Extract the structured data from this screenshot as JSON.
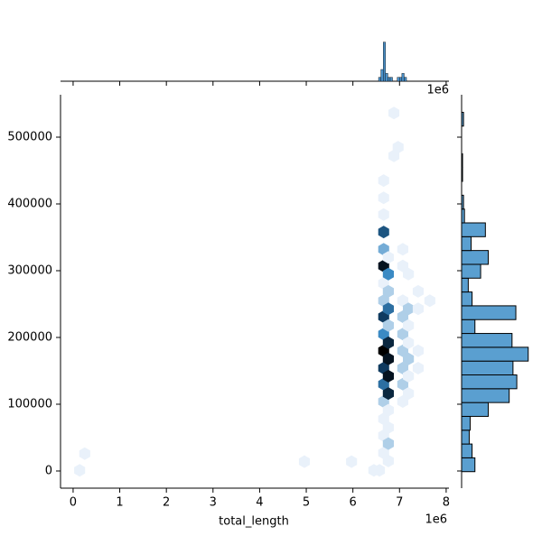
{
  "chart_data": {
    "type": "hexbin-joint",
    "xlabel": "total_length",
    "x_offset_label": "1e6",
    "top_offset_label": "1e6",
    "xlim": [
      -0.27,
      8.06
    ],
    "ylim": [
      -25700,
      563500
    ],
    "xticks": [
      0,
      1,
      2,
      3,
      4,
      5,
      6,
      7,
      8
    ],
    "yticks": [
      0,
      100000,
      200000,
      300000,
      400000,
      500000
    ],
    "cmap": [
      "#e9f1fa",
      "#3a8ac4",
      "#0f3a5f",
      "#000000"
    ],
    "hexbins": {
      "x": [
        6.66,
        6.66,
        6.66,
        6.66,
        6.66,
        6.66,
        6.66,
        6.66,
        6.66,
        6.66,
        6.66,
        6.66,
        6.66,
        6.66,
        6.66,
        6.66,
        6.66,
        6.76,
        6.76,
        6.76,
        6.76,
        6.76,
        6.76,
        6.76,
        6.76,
        6.76,
        6.76,
        6.76,
        6.76,
        6.76,
        6.57,
        6.45,
        7.07,
        7.07,
        7.07,
        7.07,
        7.07,
        7.07,
        7.07,
        7.07,
        7.07,
        7.19,
        7.19,
        7.19,
        7.19,
        7.19,
        7.19,
        7.19,
        7.4,
        7.4,
        7.4,
        7.4,
        6.88,
        6.88,
        6.97,
        7.65,
        4.96,
        5.97,
        0.14,
        0.25
      ],
      "y": [
        435000,
        409000,
        384000,
        358000,
        332000,
        307000,
        281000,
        255000,
        231000,
        205000,
        180000,
        154000,
        130000,
        104000,
        78000,
        53000,
        27000,
        320000,
        295000,
        269000,
        243000,
        218000,
        192000,
        168000,
        142000,
        116000,
        91000,
        65000,
        41000,
        15000,
        1000,
        1000,
        332000,
        307000,
        255000,
        231000,
        205000,
        180000,
        154000,
        130000,
        104000,
        295000,
        243000,
        218000,
        192000,
        168000,
        142000,
        116000,
        269000,
        243000,
        180000,
        154000,
        536000,
        472000,
        485000,
        255000,
        14000,
        14000,
        1000,
        26000
      ],
      "counts": [
        1,
        1,
        1,
        6,
        3,
        9,
        1,
        2,
        7,
        4,
        10,
        7,
        5,
        2,
        1,
        1,
        1,
        1,
        4,
        2,
        5,
        2,
        8,
        9,
        9,
        8,
        1,
        1,
        2,
        1,
        1,
        1,
        1,
        1,
        1,
        2,
        2,
        2,
        2,
        2,
        1,
        1,
        2,
        1,
        1,
        2,
        1,
        1,
        1,
        1,
        1,
        1,
        1,
        1,
        1,
        1,
        1,
        1,
        1,
        1
      ]
    },
    "top_hist": {
      "color": "#4a90c8",
      "ylim": [
        0,
        12
      ],
      "bins": [
        6.55,
        6.6,
        6.65,
        6.7,
        6.75,
        6.8,
        6.85,
        6.9,
        6.95,
        7.0,
        7.05,
        7.1,
        7.15,
        7.2
      ],
      "counts": [
        1,
        3,
        10,
        2,
        1,
        1,
        0,
        0,
        1,
        1,
        2,
        1,
        0
      ]
    },
    "right_hist": {
      "color": "#5a9fd0",
      "xlim": [
        0,
        75
      ],
      "bins": [
        -1000,
        19700,
        40400,
        61100,
        81800,
        102500,
        123200,
        143900,
        164600,
        185300,
        206000,
        226700,
        247400,
        268100,
        288800,
        309500,
        330200,
        350900,
        371600,
        392300,
        413000,
        433700,
        454400,
        475100,
        495800,
        516500,
        537200
      ],
      "counts": [
        14,
        11,
        8,
        9,
        28,
        50,
        58,
        54,
        70,
        53,
        14,
        57,
        11,
        7,
        20,
        28,
        10,
        25,
        3,
        2,
        0,
        1,
        1,
        0,
        0,
        2
      ]
    }
  }
}
